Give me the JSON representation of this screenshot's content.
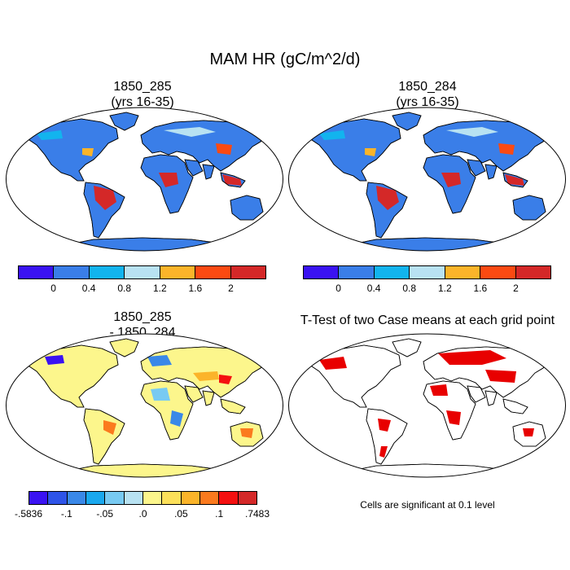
{
  "title": "MAM HR (gC/m^2/d)",
  "panels": {
    "top_left": {
      "line1": "1850_285",
      "line2": "(yrs 16-35)"
    },
    "top_right": {
      "line1": "1850_284",
      "line2": "(yrs 16-35)"
    },
    "bottom_left": {
      "line1": "1850_285",
      "line2": "- 1850_284"
    },
    "bottom_right": {
      "line1": "T-Test of two Case means at each grid point"
    }
  },
  "colorbar_top": {
    "colors": [
      "#3a12f2",
      "#3a7ee8",
      "#12b4ee",
      "#b8e2f2",
      "#fbb42a",
      "#fb4a12",
      "#d42828"
    ],
    "labels": [
      "0",
      "0.4",
      "0.8",
      "1.2",
      "1.6",
      "2"
    ]
  },
  "colorbar_diff": {
    "colors": [
      "#3a12f2",
      "#2e54e8",
      "#3a88e8",
      "#1aa8ee",
      "#78caf2",
      "#b8e2f2",
      "#fcf68c",
      "#fce05a",
      "#fbb42a",
      "#fb7a1e",
      "#f41010",
      "#d42828"
    ],
    "labels": [
      "-.5836",
      "-.1",
      "-.05",
      ".0",
      ".05",
      ".1",
      ".7483"
    ]
  },
  "significance_note": "Cells are significant at 0.1 level",
  "map_colors": {
    "land_mean": "#3a7ee8",
    "ocean": "#ffffff",
    "diff_land": "#fcf68c",
    "significant": "#e80000"
  }
}
